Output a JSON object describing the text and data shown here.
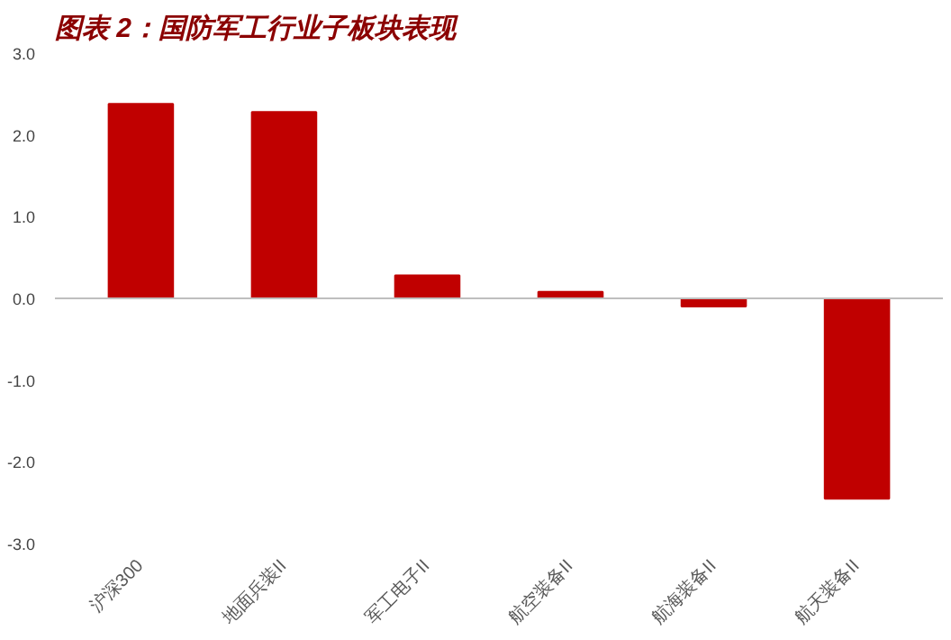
{
  "chart_data": {
    "type": "bar",
    "title": "图表 2：国防军工行业子板块表现",
    "categories": [
      "沪深300",
      "地面兵装II",
      "军工电子II",
      "航空装备II",
      "航海装备II",
      "航天装备II"
    ],
    "values": [
      2.38,
      2.28,
      0.28,
      0.08,
      -0.1,
      -2.45
    ],
    "color": "#c00000",
    "ylim": [
      -3,
      3
    ],
    "ref_lines": [
      {
        "axis": "y",
        "value": 0,
        "color": "#bfbfbf"
      }
    ],
    "yticks": [
      {
        "value": -3,
        "label": "-3.0"
      },
      {
        "value": -2,
        "label": "-2.0"
      },
      {
        "value": -1,
        "label": "-1.0"
      },
      {
        "value": 0,
        "label": "0.0"
      },
      {
        "value": 1,
        "label": "1.0"
      },
      {
        "value": 2,
        "label": "2.0"
      },
      {
        "value": 3,
        "label": "3.0"
      }
    ],
    "grid": false
  }
}
